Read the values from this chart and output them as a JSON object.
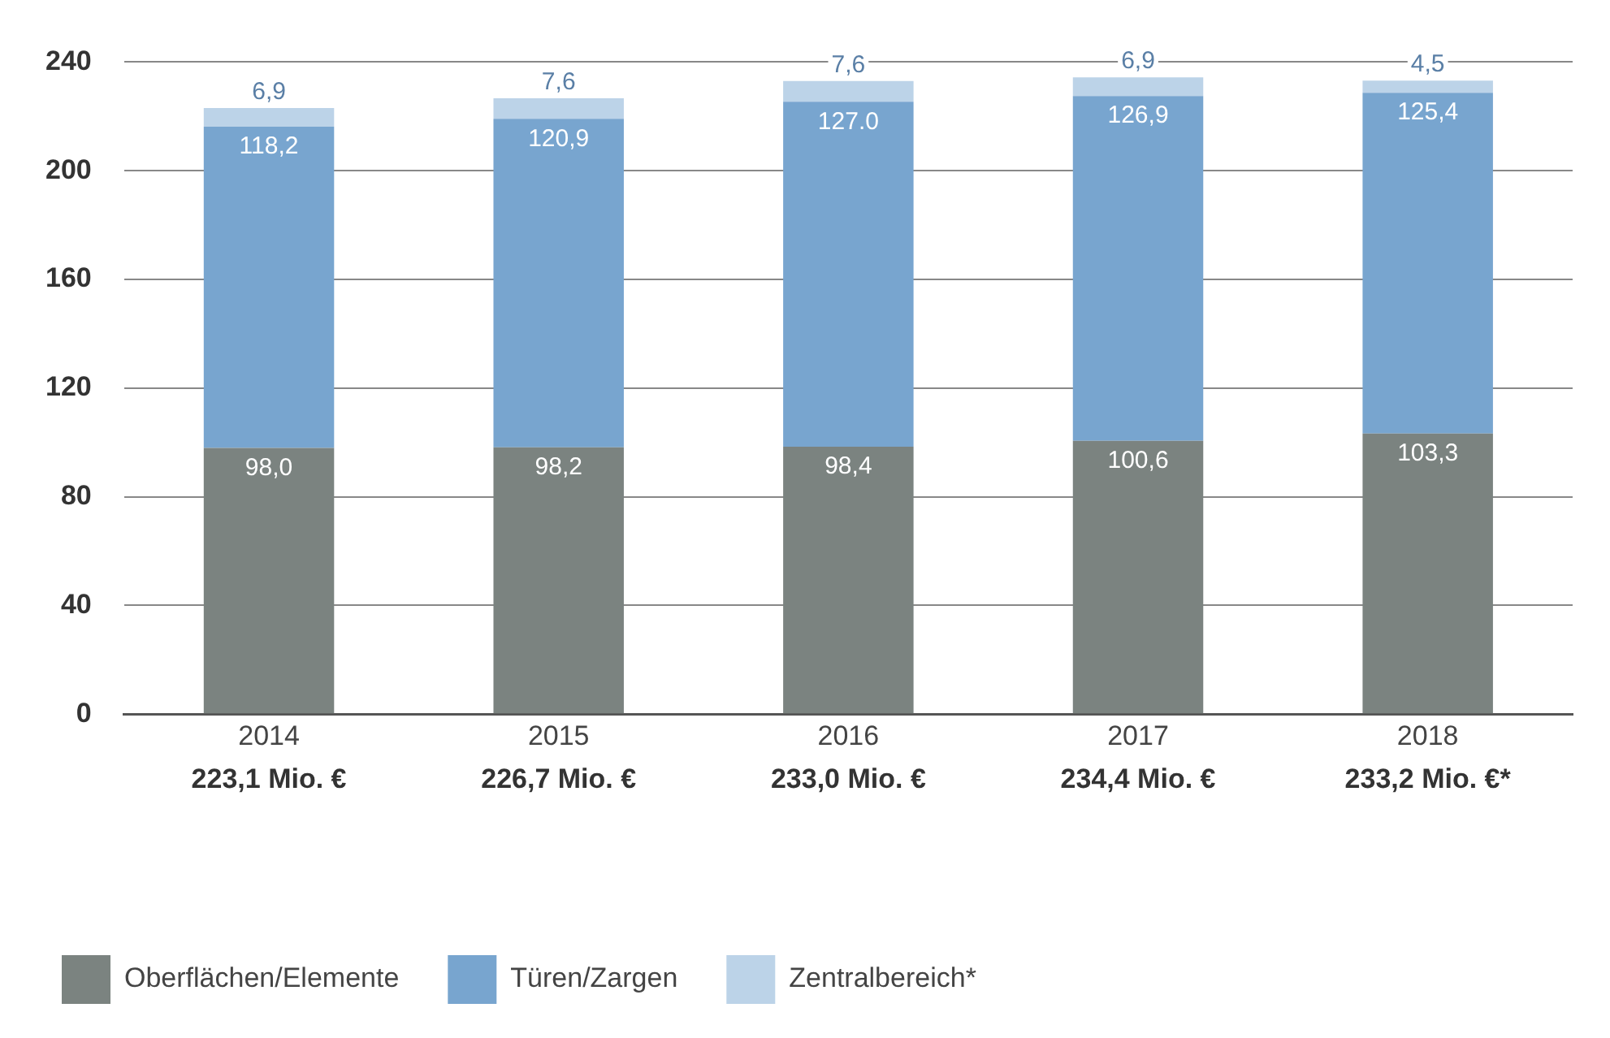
{
  "chart_data": {
    "type": "bar",
    "stacked": true,
    "categories": [
      "2014",
      "2015",
      "2016",
      "2017",
      "2018"
    ],
    "totals": [
      "223,1 Mio. €",
      "226,7 Mio. €",
      "233,0 Mio. €",
      "234,4 Mio. €",
      "233,2 Mio. €*"
    ],
    "series": [
      {
        "name": "Oberflächen/Elemente",
        "color": "#7b8380",
        "values": [
          98.0,
          98.2,
          98.4,
          100.6,
          103.3
        ],
        "value_labels": [
          "98,0",
          "98,2",
          "98,4",
          "100,6",
          "103,3"
        ]
      },
      {
        "name": "Türen/Zargen",
        "color": "#78a5cf",
        "values": [
          118.2,
          120.9,
          127.0,
          126.9,
          125.4
        ],
        "value_labels": [
          "118,2",
          "120,9",
          "127.0",
          "126,9",
          "125,4"
        ]
      },
      {
        "name": "Zentralbereich*",
        "color": "#bcd3e8",
        "values": [
          6.9,
          7.6,
          7.6,
          6.9,
          4.5
        ],
        "value_labels": [
          "6,9",
          "7,6",
          "7,6",
          "6,9",
          "4,5"
        ]
      }
    ],
    "ylim": [
      0,
      240
    ],
    "yticks": [
      0,
      40,
      80,
      120,
      160,
      200,
      240
    ],
    "grid": "y",
    "legend": "bottom"
  }
}
